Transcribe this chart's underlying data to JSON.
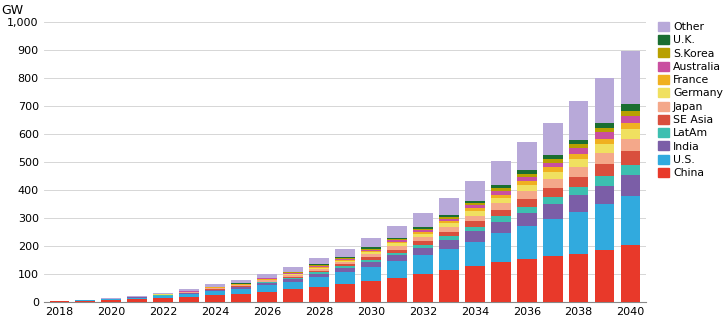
{
  "years": [
    2018,
    2019,
    2020,
    2021,
    2022,
    2023,
    2024,
    2025,
    2026,
    2027,
    2028,
    2029,
    2030,
    2031,
    2032,
    2033,
    2034,
    2035,
    2036,
    2037,
    2038,
    2039,
    2040
  ],
  "series": {
    "China": [
      3,
      5,
      7,
      10,
      14,
      18,
      24,
      30,
      37,
      45,
      54,
      64,
      75,
      87,
      100,
      113,
      127,
      142,
      152,
      163,
      173,
      187,
      202
    ],
    "U.S.": [
      1,
      2,
      3,
      5,
      7,
      10,
      14,
      18,
      23,
      28,
      35,
      42,
      50,
      58,
      67,
      77,
      89,
      103,
      118,
      133,
      148,
      163,
      178
    ],
    "India": [
      0,
      0,
      1,
      1,
      2,
      3,
      4,
      5,
      7,
      9,
      12,
      15,
      18,
      22,
      26,
      31,
      36,
      42,
      48,
      54,
      60,
      66,
      72
    ],
    "LatAm": [
      0,
      0,
      0,
      0,
      1,
      1,
      2,
      2,
      3,
      4,
      5,
      6,
      8,
      9,
      11,
      13,
      16,
      19,
      22,
      26,
      29,
      33,
      37
    ],
    "SE Asia": [
      0,
      0,
      0,
      0,
      1,
      1,
      2,
      2,
      3,
      4,
      5,
      7,
      9,
      11,
      13,
      16,
      20,
      24,
      28,
      33,
      38,
      44,
      50
    ],
    "Japan": [
      0,
      0,
      1,
      1,
      1,
      2,
      3,
      3,
      4,
      5,
      7,
      8,
      10,
      12,
      14,
      17,
      20,
      23,
      27,
      30,
      34,
      38,
      42
    ],
    "Germany": [
      0,
      0,
      0,
      1,
      1,
      1,
      2,
      2,
      3,
      4,
      5,
      6,
      8,
      10,
      12,
      14,
      17,
      20,
      23,
      27,
      30,
      34,
      38
    ],
    "France": [
      0,
      0,
      0,
      0,
      0,
      1,
      1,
      1,
      2,
      2,
      3,
      3,
      4,
      5,
      6,
      8,
      9,
      11,
      13,
      15,
      17,
      19,
      22
    ],
    "Australia": [
      0,
      0,
      0,
      0,
      1,
      1,
      1,
      2,
      2,
      3,
      4,
      4,
      5,
      6,
      8,
      9,
      11,
      13,
      15,
      17,
      20,
      22,
      25
    ],
    "S.Korea": [
      0,
      0,
      0,
      0,
      0,
      0,
      1,
      1,
      1,
      2,
      2,
      3,
      4,
      4,
      5,
      6,
      8,
      9,
      11,
      12,
      14,
      16,
      18
    ],
    "U.K.": [
      0,
      0,
      0,
      0,
      0,
      1,
      1,
      1,
      2,
      2,
      3,
      3,
      4,
      5,
      6,
      7,
      9,
      11,
      13,
      15,
      17,
      19,
      22
    ],
    "Other": [
      1,
      1,
      2,
      3,
      4,
      6,
      8,
      11,
      14,
      18,
      23,
      28,
      34,
      41,
      50,
      60,
      72,
      86,
      100,
      116,
      137,
      160,
      190
    ]
  },
  "colors": {
    "China": "#e8392a",
    "U.S.": "#31aade",
    "India": "#7b5ea7",
    "LatAm": "#3dbfb0",
    "SE Asia": "#d94f3d",
    "Japan": "#f4a88a",
    "Germany": "#f0e060",
    "France": "#f0b020",
    "Australia": "#c94fa0",
    "S.Korea": "#b8a000",
    "U.K.": "#1a6e31",
    "Other": "#b8a9d9"
  },
  "legend_order": [
    "Other",
    "U.K.",
    "S.Korea",
    "Australia",
    "France",
    "Germany",
    "Japan",
    "SE Asia",
    "LatAm",
    "India",
    "U.S.",
    "China"
  ],
  "stack_order": [
    "China",
    "U.S.",
    "India",
    "LatAm",
    "SE Asia",
    "Japan",
    "Germany",
    "France",
    "Australia",
    "S.Korea",
    "U.K.",
    "Other"
  ],
  "ylabel": "GW",
  "ylim": [
    0,
    1000
  ],
  "yticks": [
    0,
    100,
    200,
    300,
    400,
    500,
    600,
    700,
    800,
    900,
    1000
  ],
  "ytick_labels": [
    "0",
    "100",
    "200",
    "300",
    "400",
    "500",
    "600",
    "700",
    "800",
    "900",
    "1,000"
  ],
  "xtick_labels": [
    "2018",
    "2020",
    "2022",
    "2024",
    "2026",
    "2028",
    "2030",
    "2032",
    "2034",
    "2036",
    "2038",
    "2040"
  ],
  "background_color": "#ffffff",
  "grid_color": "#d0d0d0",
  "figsize": [
    7.28,
    3.21
  ],
  "dpi": 100,
  "bar_width": 0.75,
  "legend_fontsize": 7.8,
  "tick_fontsize": 8.0,
  "ylabel_fontsize": 9
}
